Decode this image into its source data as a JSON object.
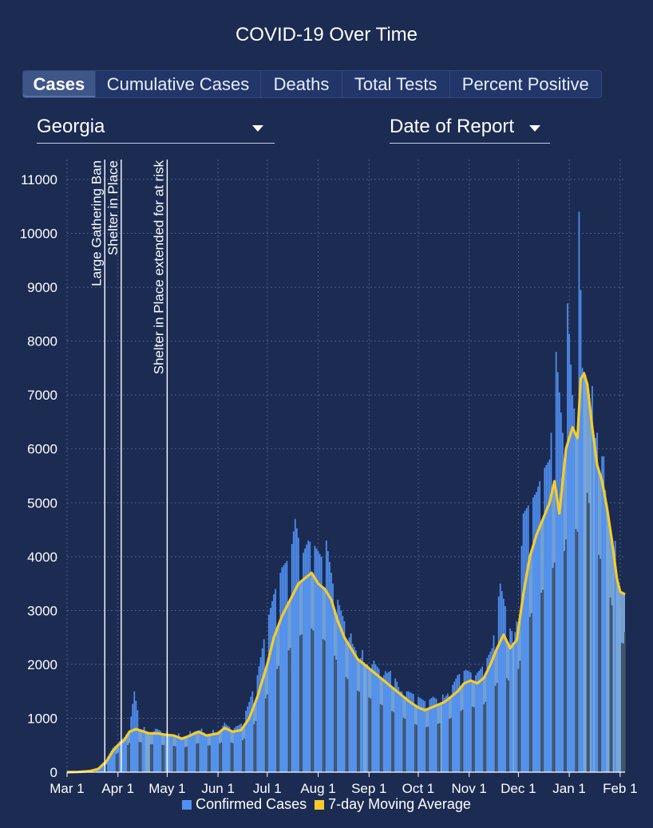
{
  "title": "COVID-19 Over Time",
  "tabs": [
    {
      "label": "Cases",
      "active": true
    },
    {
      "label": "Cumulative Cases",
      "active": false
    },
    {
      "label": "Deaths",
      "active": false
    },
    {
      "label": "Total Tests",
      "active": false
    },
    {
      "label": "Percent Positive",
      "active": false
    }
  ],
  "filters": {
    "region": "Georgia",
    "date_basis": "Date of Report"
  },
  "colors": {
    "background": "#1b2b52",
    "bars": "#78a7d8",
    "bar_peaks": "#4f8ff0",
    "bar_dips": "#3a4a60",
    "moving_average": "#f5cc2a",
    "event_line": "#ffffff"
  },
  "chart_data": {
    "type": "bar",
    "x_axis": "date (2020-03-01 to 2021-02-04)",
    "xtick_labels": [
      "Mar 1",
      "Apr 1",
      "May 1",
      "Jun 1",
      "Jul 1",
      "Aug 1",
      "Sep 1",
      "Oct 1",
      "Nov 1",
      "Dec 1",
      "Jan 1",
      "Feb 1"
    ],
    "ylim": [
      0,
      11000
    ],
    "yticks": [
      0,
      1000,
      2000,
      3000,
      4000,
      5000,
      6000,
      7000,
      8000,
      9000,
      10000,
      11000
    ],
    "grid": true,
    "legend_position": "bottom",
    "annotations": [
      {
        "date": "2020-03-24",
        "label": "Large Gathering Ban"
      },
      {
        "date": "2020-04-03",
        "label": "Shelter in Place"
      },
      {
        "date": "2020-05-01",
        "label": "Shelter in Place extended for at risk"
      }
    ],
    "series": [
      {
        "name": "Confirmed Cases",
        "kind": "bar",
        "points": [
          [
            "2020-03-01",
            0
          ],
          [
            "2020-03-08",
            5
          ],
          [
            "2020-03-15",
            30
          ],
          [
            "2020-03-20",
            80
          ],
          [
            "2020-03-25",
            250
          ],
          [
            "2020-03-29",
            450
          ],
          [
            "2020-04-01",
            550
          ],
          [
            "2020-04-05",
            650
          ],
          [
            "2020-04-08",
            800
          ],
          [
            "2020-04-11",
            1500
          ],
          [
            "2020-04-15",
            800
          ],
          [
            "2020-04-20",
            700
          ],
          [
            "2020-04-25",
            800
          ],
          [
            "2020-05-01",
            700
          ],
          [
            "2020-05-05",
            700
          ],
          [
            "2020-05-10",
            650
          ],
          [
            "2020-05-15",
            700
          ],
          [
            "2020-05-20",
            800
          ],
          [
            "2020-05-25",
            700
          ],
          [
            "2020-06-01",
            750
          ],
          [
            "2020-06-05",
            900
          ],
          [
            "2020-06-10",
            800
          ],
          [
            "2020-06-15",
            900
          ],
          [
            "2020-06-20",
            1300
          ],
          [
            "2020-06-25",
            1800
          ],
          [
            "2020-07-01",
            2800
          ],
          [
            "2020-07-05",
            3300
          ],
          [
            "2020-07-10",
            3800
          ],
          [
            "2020-07-15",
            4000
          ],
          [
            "2020-07-18",
            4700
          ],
          [
            "2020-07-22",
            4000
          ],
          [
            "2020-07-26",
            4300
          ],
          [
            "2020-07-30",
            4200
          ],
          [
            "2020-08-03",
            4000
          ],
          [
            "2020-08-06",
            4300
          ],
          [
            "2020-08-10",
            3500
          ],
          [
            "2020-08-15",
            3000
          ],
          [
            "2020-08-20",
            2500
          ],
          [
            "2020-08-25",
            2200
          ],
          [
            "2020-08-30",
            2000
          ],
          [
            "2020-09-05",
            2000
          ],
          [
            "2020-09-10",
            1800
          ],
          [
            "2020-09-15",
            1900
          ],
          [
            "2020-09-20",
            1500
          ],
          [
            "2020-09-25",
            1500
          ],
          [
            "2020-10-01",
            1400
          ],
          [
            "2020-10-06",
            1300
          ],
          [
            "2020-10-10",
            1400
          ],
          [
            "2020-10-15",
            1300
          ],
          [
            "2020-10-20",
            1500
          ],
          [
            "2020-10-25",
            1800
          ],
          [
            "2020-10-30",
            1900
          ],
          [
            "2020-11-05",
            1800
          ],
          [
            "2020-11-10",
            2000
          ],
          [
            "2020-11-15",
            2300
          ],
          [
            "2020-11-20",
            3500
          ],
          [
            "2020-11-25",
            2800
          ],
          [
            "2020-11-28",
            2400
          ],
          [
            "2020-12-01",
            3000
          ],
          [
            "2020-12-04",
            4800
          ],
          [
            "2020-12-08",
            5000
          ],
          [
            "2020-12-12",
            5200
          ],
          [
            "2020-12-16",
            5600
          ],
          [
            "2020-12-20",
            5800
          ],
          [
            "2020-12-24",
            7800
          ],
          [
            "2020-12-28",
            6300
          ],
          [
            "2020-12-31",
            8700
          ],
          [
            "2021-01-03",
            7000
          ],
          [
            "2021-01-05",
            6500
          ],
          [
            "2021-01-07",
            10400
          ],
          [
            "2021-01-09",
            7500
          ],
          [
            "2021-01-12",
            7300
          ],
          [
            "2021-01-15",
            6000
          ],
          [
            "2021-01-19",
            6400
          ],
          [
            "2021-01-22",
            5600
          ],
          [
            "2021-01-25",
            4500
          ],
          [
            "2021-01-28",
            3700
          ],
          [
            "2021-01-31",
            3300
          ],
          [
            "2021-02-03",
            2600
          ]
        ]
      },
      {
        "name": "7-day Moving Average",
        "kind": "line",
        "points": [
          [
            "2020-03-01",
            0
          ],
          [
            "2020-03-08",
            5
          ],
          [
            "2020-03-15",
            20
          ],
          [
            "2020-03-20",
            60
          ],
          [
            "2020-03-25",
            200
          ],
          [
            "2020-03-29",
            400
          ],
          [
            "2020-04-01",
            500
          ],
          [
            "2020-04-05",
            600
          ],
          [
            "2020-04-08",
            750
          ],
          [
            "2020-04-12",
            800
          ],
          [
            "2020-04-16",
            760
          ],
          [
            "2020-04-20",
            720
          ],
          [
            "2020-04-25",
            720
          ],
          [
            "2020-05-01",
            690
          ],
          [
            "2020-05-05",
            680
          ],
          [
            "2020-05-10",
            620
          ],
          [
            "2020-05-15",
            680
          ],
          [
            "2020-05-20",
            750
          ],
          [
            "2020-05-25",
            680
          ],
          [
            "2020-06-01",
            720
          ],
          [
            "2020-06-05",
            820
          ],
          [
            "2020-06-10",
            750
          ],
          [
            "2020-06-15",
            780
          ],
          [
            "2020-06-20",
            1000
          ],
          [
            "2020-06-25",
            1400
          ],
          [
            "2020-07-01",
            2000
          ],
          [
            "2020-07-05",
            2500
          ],
          [
            "2020-07-10",
            2900
          ],
          [
            "2020-07-15",
            3200
          ],
          [
            "2020-07-20",
            3500
          ],
          [
            "2020-07-24",
            3600
          ],
          [
            "2020-07-28",
            3700
          ],
          [
            "2020-08-01",
            3500
          ],
          [
            "2020-08-05",
            3400
          ],
          [
            "2020-08-09",
            3200
          ],
          [
            "2020-08-13",
            2800
          ],
          [
            "2020-08-17",
            2500
          ],
          [
            "2020-08-21",
            2300
          ],
          [
            "2020-08-25",
            2100
          ],
          [
            "2020-08-29",
            2000
          ],
          [
            "2020-09-02",
            1900
          ],
          [
            "2020-09-06",
            1800
          ],
          [
            "2020-09-10",
            1700
          ],
          [
            "2020-09-14",
            1600
          ],
          [
            "2020-09-18",
            1500
          ],
          [
            "2020-09-22",
            1400
          ],
          [
            "2020-09-26",
            1300
          ],
          [
            "2020-10-01",
            1200
          ],
          [
            "2020-10-05",
            1150
          ],
          [
            "2020-10-09",
            1200
          ],
          [
            "2020-10-13",
            1250
          ],
          [
            "2020-10-17",
            1300
          ],
          [
            "2020-10-21",
            1400
          ],
          [
            "2020-10-25",
            1500
          ],
          [
            "2020-10-29",
            1650
          ],
          [
            "2020-11-02",
            1700
          ],
          [
            "2020-11-06",
            1650
          ],
          [
            "2020-11-10",
            1750
          ],
          [
            "2020-11-14",
            2000
          ],
          [
            "2020-11-18",
            2300
          ],
          [
            "2020-11-22",
            2550
          ],
          [
            "2020-11-26",
            2300
          ],
          [
            "2020-11-30",
            2450
          ],
          [
            "2020-12-04",
            3300
          ],
          [
            "2020-12-08",
            4000
          ],
          [
            "2020-12-12",
            4400
          ],
          [
            "2020-12-16",
            4700
          ],
          [
            "2020-12-20",
            5000
          ],
          [
            "2020-12-23",
            5400
          ],
          [
            "2020-12-26",
            4800
          ],
          [
            "2020-12-30",
            6000
          ],
          [
            "2021-01-03",
            6400
          ],
          [
            "2021-01-06",
            6200
          ],
          [
            "2021-01-08",
            7300
          ],
          [
            "2021-01-10",
            7400
          ],
          [
            "2021-01-12",
            7200
          ],
          [
            "2021-01-15",
            6400
          ],
          [
            "2021-01-18",
            5700
          ],
          [
            "2021-01-21",
            5400
          ],
          [
            "2021-01-24",
            4900
          ],
          [
            "2021-01-27",
            4300
          ],
          [
            "2021-01-30",
            3600
          ],
          [
            "2021-02-01",
            3350
          ],
          [
            "2021-02-04",
            3300
          ]
        ]
      }
    ]
  }
}
